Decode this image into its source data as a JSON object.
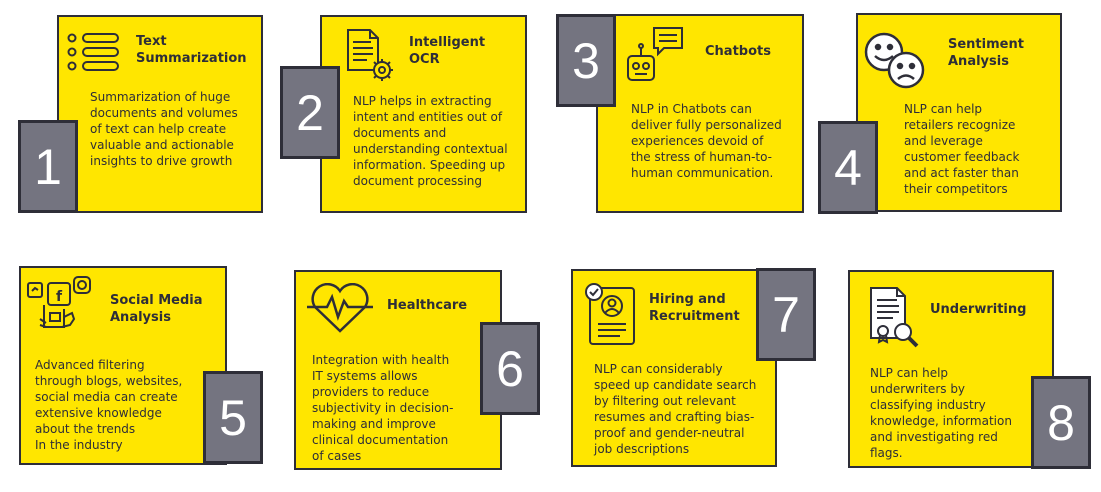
{
  "cards": [
    {
      "number": "1",
      "title": "Text\nSummarization",
      "icon": "list-icon",
      "description": "Summarization of huge\ndocuments and volumes\nof text can help create\nvaluable and actionable\ninsights to drive growth"
    },
    {
      "number": "2",
      "title": "Intelligent\nOCR",
      "icon": "document-gear-icon",
      "description": "NLP helps in extracting\nintent and entities out of\ndocuments and\nunderstanding contextual\ninformation. Speeding up\ndocument processing"
    },
    {
      "number": "3",
      "title": "Chatbots",
      "icon": "robot-chat-icon",
      "description": "NLP in Chatbots can\ndeliver fully personalized\nexperiences devoid of\nthe stress of human-to-\nhuman communication."
    },
    {
      "number": "4",
      "title": "Sentiment\nAnalysis",
      "icon": "happy-sad-faces-icon",
      "description": "NLP can help\nretailers recognize\nand leverage\ncustomer feedback\nand act faster than\ntheir competitors"
    },
    {
      "number": "5",
      "title": "Social Media\nAnalysis",
      "icon": "social-media-icon",
      "description": "Advanced filtering\nthrough blogs, websites,\nsocial media can create\nextensive knowledge\nabout the trends\nIn the industry"
    },
    {
      "number": "6",
      "title": "Healthcare",
      "icon": "heart-pulse-icon",
      "description": "Integration with health\nIT systems allows\nproviders to reduce\nsubjectivity in decision-\nmaking and improve\nclinical documentation\nof cases"
    },
    {
      "number": "7",
      "title": "Hiring and\nRecruitment",
      "icon": "candidate-profile-icon",
      "description": "NLP can considerably\nspeed up candidate search\nby filtering out relevant\nresumes and crafting bias-\nproof and gender-neutral\njob descriptions"
    },
    {
      "number": "8",
      "title": "Underwriting",
      "icon": "document-search-icon",
      "description": "NLP can help\nunderwriters by\nclassifying industry\nknowledge, information\nand investigating red\nflags."
    }
  ],
  "colors": {
    "card_fill": "#ffe600",
    "number_fill": "#747480",
    "border": "#2e2e38",
    "text": "#2e2e38"
  }
}
